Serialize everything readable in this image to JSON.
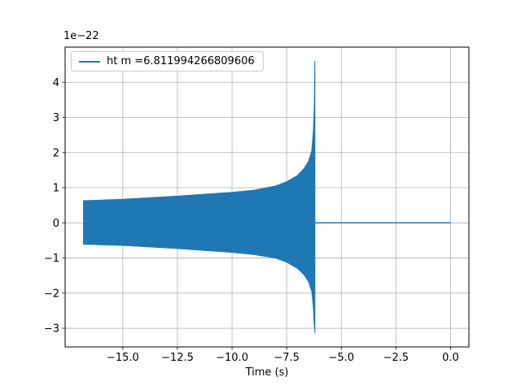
{
  "chart_data": {
    "type": "line",
    "title": "",
    "xlabel": "Time (s)",
    "ylabel": "",
    "y_offset_text": "1e−22",
    "y_scale_factor": "1e-22",
    "legend_entries": [
      "ht m =6.811994266809606"
    ],
    "legend_location": "upper left",
    "grid": true,
    "xlim": [
      -17.64,
      0.84
    ],
    "ylim": [
      -3.53,
      5.0
    ],
    "xticks": {
      "values": [
        -15,
        -12.5,
        -10,
        -7.5,
        -5,
        -2.5,
        0
      ],
      "labels": [
        "−15.0",
        "−12.5",
        "−10.0",
        "−7.5",
        "−5.0",
        "−2.5",
        "0.0"
      ]
    },
    "yticks": {
      "values": [
        -3,
        -2,
        -1,
        0,
        1,
        2,
        3,
        4
      ],
      "labels": [
        "−3",
        "−2",
        "−1",
        "0",
        "1",
        "2",
        "3",
        "4"
      ]
    },
    "colors": {
      "line": "#1f77b4",
      "grid": "#b0b0b0",
      "spine": "#000000",
      "text": "#000000",
      "legend_edge": "#cccccc",
      "background": "#ffffff"
    },
    "series": [
      {
        "name": "ht m =6.811994266809606",
        "description": "gravitational-wave chirp strain; dense oscillation shown as envelope, y-units 1e-22",
        "envelope_x": [
          -16.8,
          -15,
          -12.5,
          -10,
          -9,
          -8,
          -7.5,
          -7,
          -6.7,
          -6.5,
          -6.35,
          -6.28,
          -6.24,
          -6.21
        ],
        "envelope_top": [
          0.63,
          0.67,
          0.76,
          0.87,
          0.93,
          1.05,
          1.17,
          1.35,
          1.55,
          1.75,
          2.05,
          2.6,
          3.3,
          4.61
        ],
        "envelope_bottom": [
          -0.61,
          -0.64,
          -0.73,
          -0.84,
          -0.9,
          -1.0,
          -1.12,
          -1.3,
          -1.48,
          -1.67,
          -1.95,
          -2.4,
          -2.9,
          -3.14
        ],
        "peak": {
          "x": -6.21,
          "top": 4.61,
          "bottom": -3.14
        },
        "flat_segment": {
          "x": [
            -6.18,
            0.0
          ],
          "y": 0
        }
      }
    ]
  }
}
